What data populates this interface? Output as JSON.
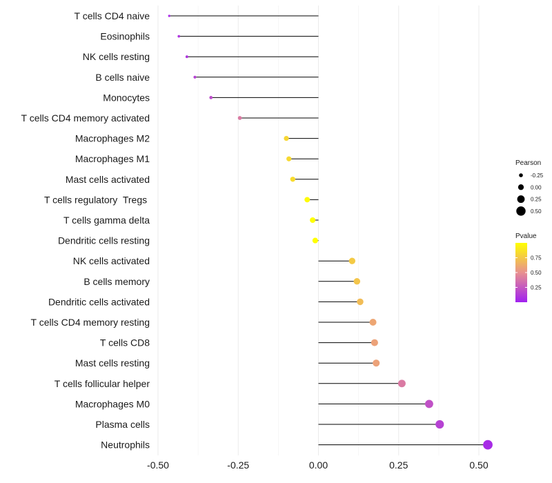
{
  "chart_data": {
    "type": "lollipop",
    "title": "",
    "xlabel": "",
    "ylabel": "",
    "xlim": [
      -0.5,
      0.5
    ],
    "xticks": [
      -0.5,
      -0.25,
      0.0,
      0.25,
      0.5
    ],
    "xtick_labels": [
      "-0.50",
      "-0.25",
      "0.00",
      "0.25",
      "0.50"
    ],
    "categories": [
      "T cells CD4 naive",
      "Eosinophils",
      "NK cells resting",
      "B cells naive",
      "Monocytes",
      "T cells CD4 memory activated",
      "Macrophages M2",
      "Macrophages M1",
      "Mast cells activated",
      "T cells regulatory  Tregs ",
      "T cells gamma delta",
      "Dendritic cells resting",
      "NK cells activated",
      "B cells memory",
      "Dendritic cells activated",
      "T cells CD4 memory resting",
      "T cells CD8",
      "Mast cells resting",
      "T cells follicular helper",
      "Macrophages M0",
      "Plasma cells",
      "Neutrophils"
    ],
    "pearson": [
      -0.465,
      -0.435,
      -0.41,
      -0.385,
      -0.335,
      -0.245,
      -0.1,
      -0.092,
      -0.08,
      -0.035,
      -0.018,
      -0.01,
      0.105,
      0.12,
      0.13,
      0.17,
      0.175,
      0.18,
      0.26,
      0.345,
      0.378,
      0.528
    ],
    "pvalue": [
      0.06,
      0.1,
      0.1,
      0.15,
      0.2,
      0.4,
      0.82,
      0.83,
      0.84,
      0.98,
      1.0,
      1.0,
      0.76,
      0.74,
      0.7,
      0.6,
      0.58,
      0.58,
      0.4,
      0.22,
      0.15,
      0.05
    ],
    "legend_size": {
      "title": "Pearson",
      "values": [
        -0.25,
        0.0,
        0.25,
        0.5
      ],
      "labels": [
        "-0.25",
        "0.00",
        "0.25",
        "0.50"
      ]
    },
    "legend_color": {
      "title": "Pvalue",
      "range": [
        0.0,
        1.0
      ],
      "ticks": [
        0.25,
        0.5,
        0.75
      ],
      "tick_labels": [
        "0.25",
        "0.50",
        "0.75"
      ],
      "low_color": "#a020f0",
      "mid_color": "#e89090",
      "high_color": "#ffff00"
    },
    "grid": true,
    "legend_placement": "right"
  }
}
